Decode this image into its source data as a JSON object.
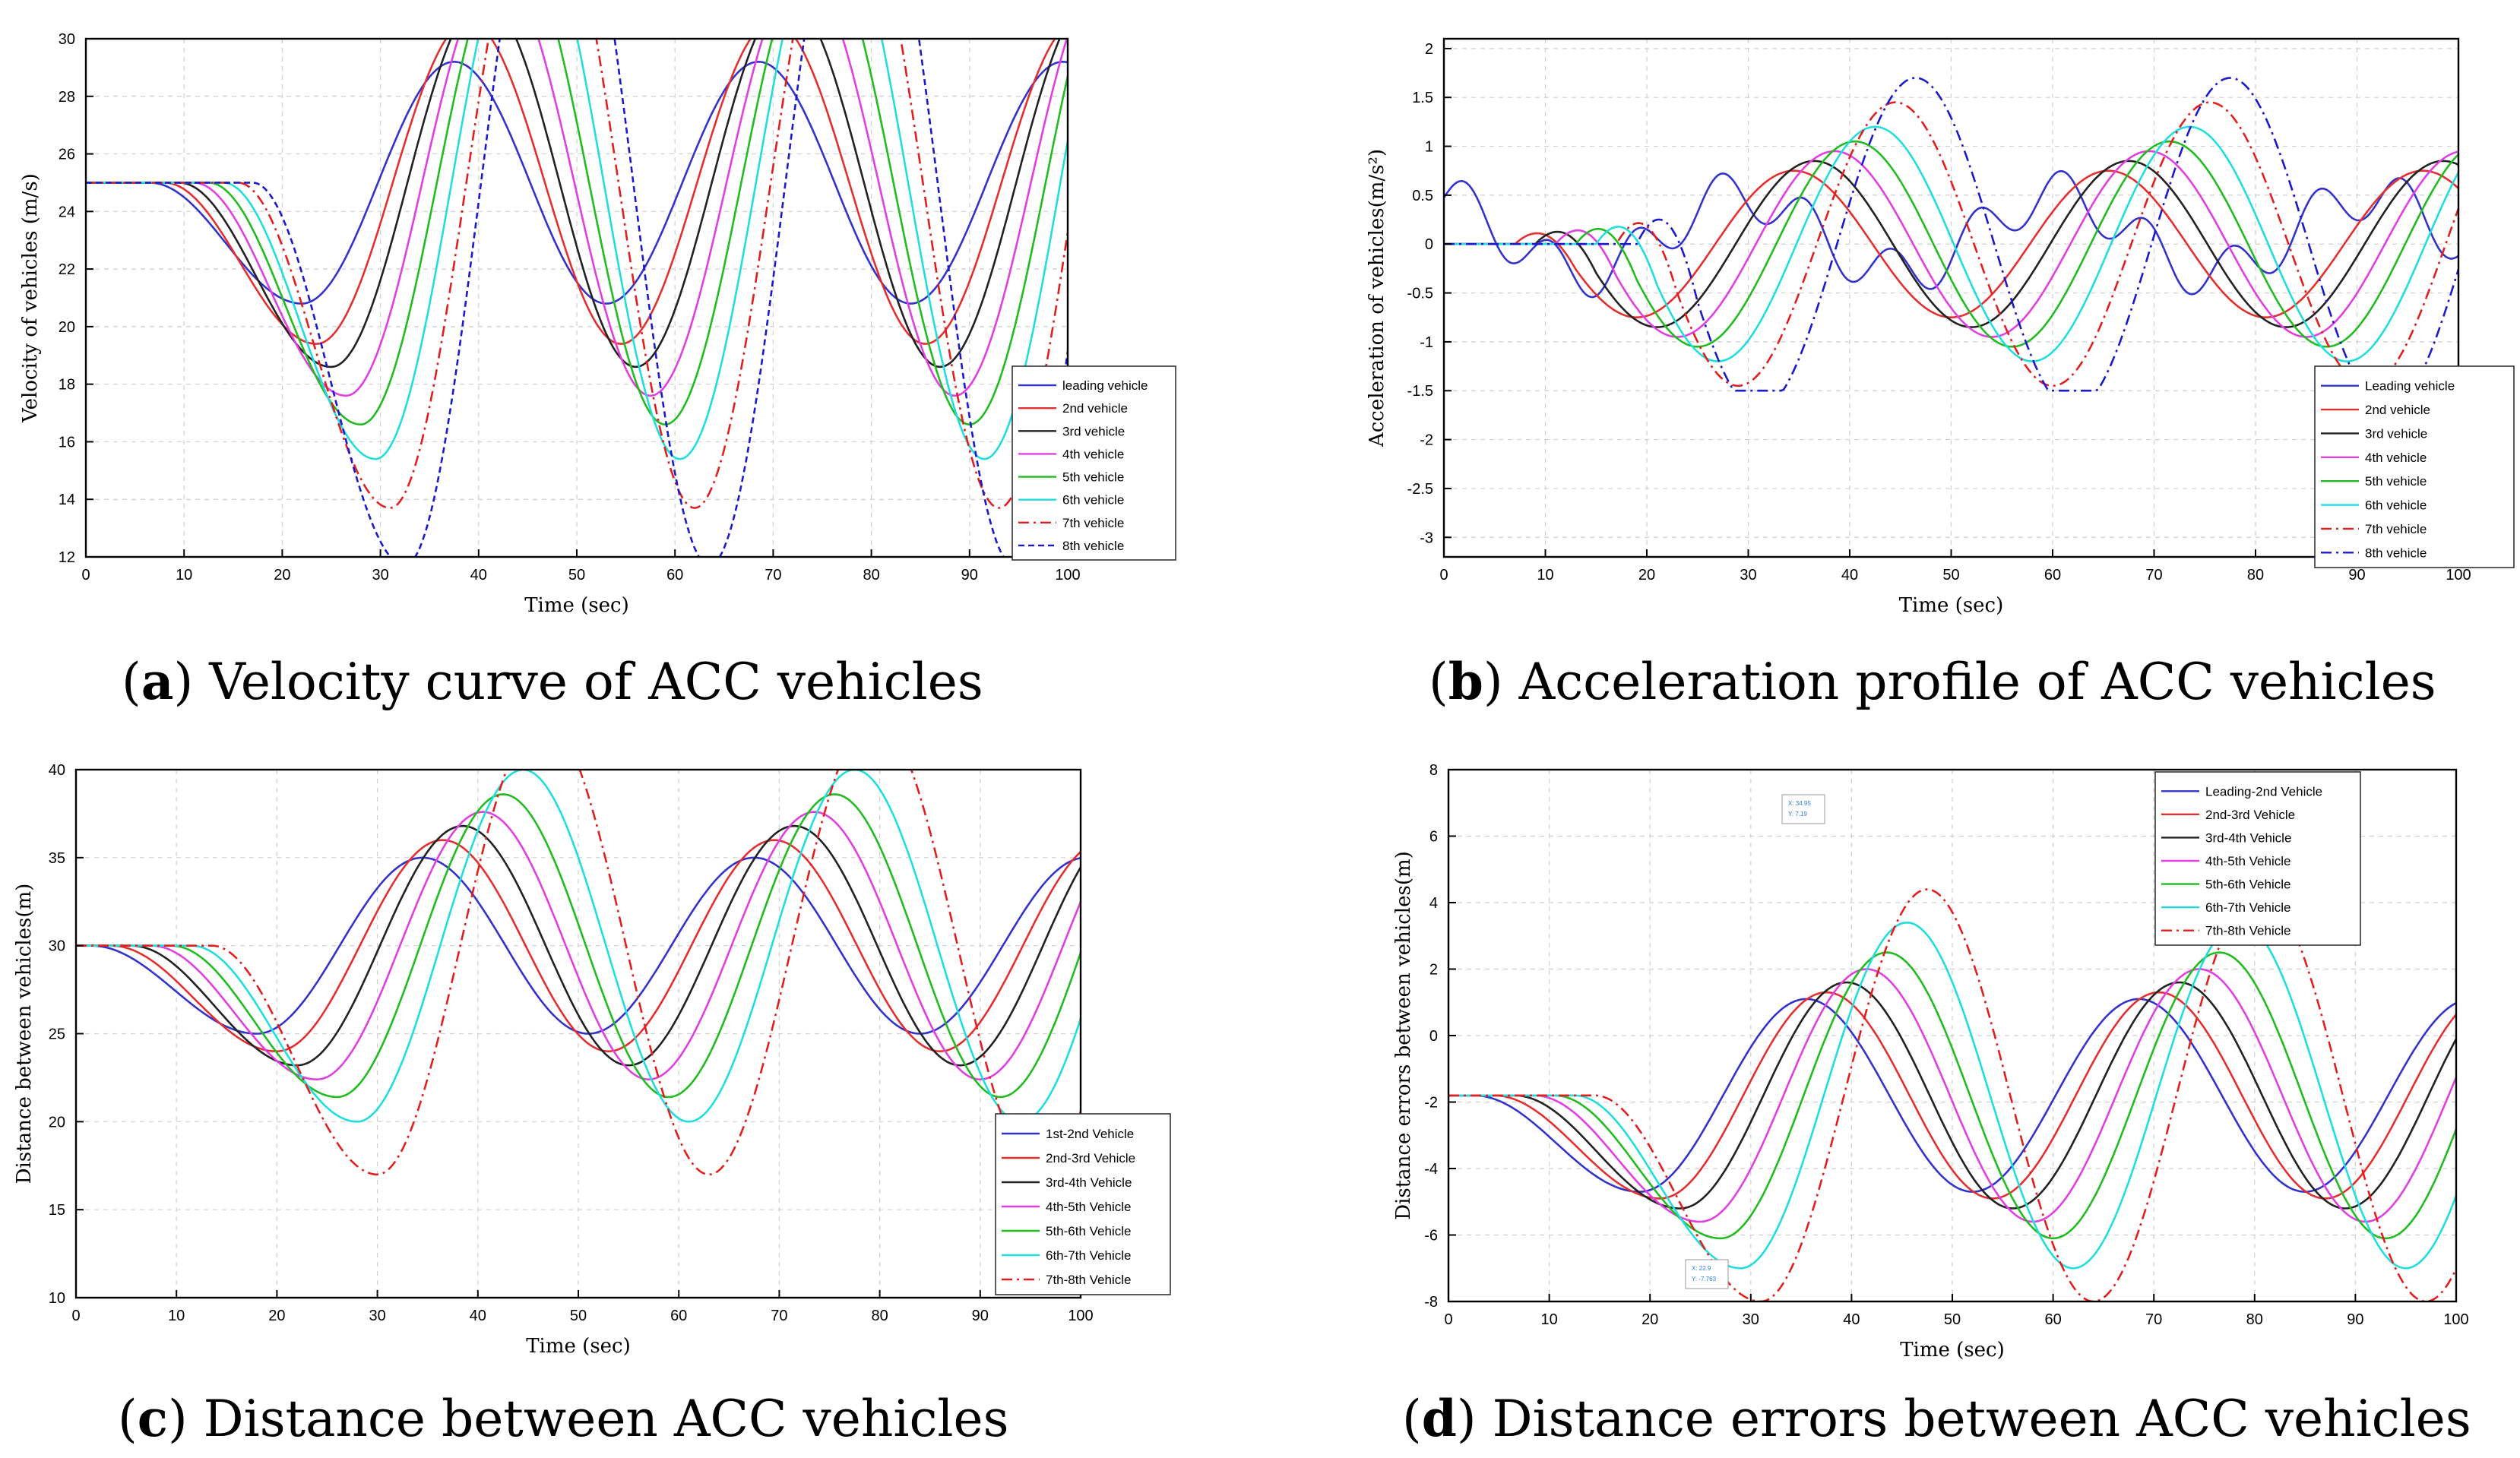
{
  "colors": [
    "#3333cc",
    "#e23030",
    "#222222",
    "#e040e0",
    "#22bb22",
    "#22dddd",
    "#e02020",
    "#1a1acc"
  ],
  "chart_data": [
    {
      "type": "line",
      "panel": "a",
      "caption_letter": "a",
      "caption_text": ") Velocity curve of ACC vehicles",
      "caption_open": "(",
      "xlabel": "Time (sec)",
      "ylabel": "Velocity of vehicles (m/s)",
      "xlim": [
        0,
        100
      ],
      "ylim": [
        12,
        30
      ],
      "xticks": [
        0,
        10,
        20,
        30,
        40,
        50,
        60,
        70,
        80,
        90,
        100
      ],
      "yticks": [
        12,
        14,
        16,
        18,
        20,
        22,
        24,
        26,
        28,
        30
      ],
      "base": 25,
      "amp": [
        4.2,
        5.6,
        6.4,
        7.4,
        8.4,
        9.6,
        11.3,
        13.3
      ],
      "phase": [
        22,
        23.5,
        25,
        26.5,
        28,
        29.5,
        31,
        32.5
      ],
      "period": 31,
      "series": [
        {
          "name": "leading vehicle"
        },
        {
          "name": "2nd vehicle"
        },
        {
          "name": "3rd vehicle"
        },
        {
          "name": "4th vehicle"
        },
        {
          "name": "5th vehicle"
        },
        {
          "name": "6th vehicle"
        },
        {
          "name": "7th vehicle"
        },
        {
          "name": "8th vehicle"
        }
      ]
    },
    {
      "type": "line",
      "panel": "b",
      "caption_letter": "b",
      "caption_text": ") Acceleration profile of ACC vehicles",
      "caption_open": "(",
      "xlabel": "Time (sec)",
      "ylabel": "Acceleration of vehicles(m/s²)",
      "xlim": [
        0,
        100
      ],
      "ylim": [
        -3.2,
        2.1
      ],
      "xticks": [
        0,
        10,
        20,
        30,
        40,
        50,
        60,
        70,
        80,
        90,
        100
      ],
      "yticks": [
        -3,
        -2.5,
        -2,
        -1.5,
        -1,
        -0.5,
        0,
        0.5,
        1,
        1.5,
        2
      ],
      "base": 0,
      "amp": [
        0.85,
        0.75,
        0.85,
        0.95,
        1.05,
        1.2,
        1.45,
        1.7
      ],
      "phase": [
        14,
        19,
        21,
        23,
        25,
        27,
        29,
        31
      ],
      "period": 31,
      "series": [
        {
          "name": "Leading vehicle"
        },
        {
          "name": "2nd vehicle"
        },
        {
          "name": "3rd vehicle"
        },
        {
          "name": "4th vehicle"
        },
        {
          "name": "5th vehicle"
        },
        {
          "name": "6th vehicle"
        },
        {
          "name": "7th vehicle"
        },
        {
          "name": "8th vehicle"
        }
      ]
    },
    {
      "type": "line",
      "panel": "c",
      "caption_letter": "c",
      "caption_text": ") Distance between ACC vehicles",
      "caption_open": "(",
      "xlabel": "Time (sec)",
      "ylabel": "Distance between vehicles(m)",
      "xlim": [
        0,
        100
      ],
      "ylim": [
        10,
        40
      ],
      "xticks": [
        0,
        10,
        20,
        30,
        40,
        50,
        60,
        70,
        80,
        90,
        100
      ],
      "yticks": [
        10,
        15,
        20,
        25,
        30,
        35,
        40
      ],
      "base": 30,
      "amp": [
        5,
        6,
        6.8,
        7.6,
        8.6,
        10,
        13
      ],
      "phase": [
        18,
        20,
        22,
        24,
        26,
        28,
        30
      ],
      "period": 33,
      "series": [
        {
          "name": "1st-2nd Vehicle"
        },
        {
          "name": "2nd-3rd Vehicle"
        },
        {
          "name": "3rd-4th Vehicle"
        },
        {
          "name": "4th-5th Vehicle"
        },
        {
          "name": "5th-6th Vehicle"
        },
        {
          "name": "6th-7th Vehicle"
        },
        {
          "name": "7th-8th Vehicle"
        }
      ]
    },
    {
      "type": "line",
      "panel": "d",
      "caption_letter": "d",
      "caption_text": ") Distance errors between ACC vehicles",
      "caption_open": "(",
      "xlabel": "Time (sec)",
      "ylabel": "Distance errors between vehicles(m)",
      "xlim": [
        0,
        100
      ],
      "ylim": [
        -8,
        8
      ],
      "xticks": [
        0,
        10,
        20,
        30,
        40,
        50,
        60,
        70,
        80,
        90,
        100
      ],
      "yticks": [
        -8,
        -6,
        -4,
        -2,
        0,
        2,
        4,
        6,
        8
      ],
      "base": -1.8,
      "amp": [
        2.9,
        3.1,
        3.4,
        3.8,
        4.3,
        5.2,
        6.2
      ],
      "phase": [
        19,
        21,
        23,
        25,
        27,
        29,
        31
      ],
      "period": 33,
      "datatips": [
        {
          "x_text": "X: 34.95",
          "y_text": "Y: 7.19"
        },
        {
          "x_text": "X: 22.9",
          "y_text": "Y: -7.763"
        }
      ],
      "series": [
        {
          "name": "Leading-2nd Vehicle"
        },
        {
          "name": "2nd-3rd Vehicle"
        },
        {
          "name": "3rd-4th Vehicle"
        },
        {
          "name": "4th-5th Vehicle"
        },
        {
          "name": "5th-6th Vehicle"
        },
        {
          "name": "6th-7th Vehicle"
        },
        {
          "name": "7th-8th Vehicle"
        }
      ]
    }
  ]
}
